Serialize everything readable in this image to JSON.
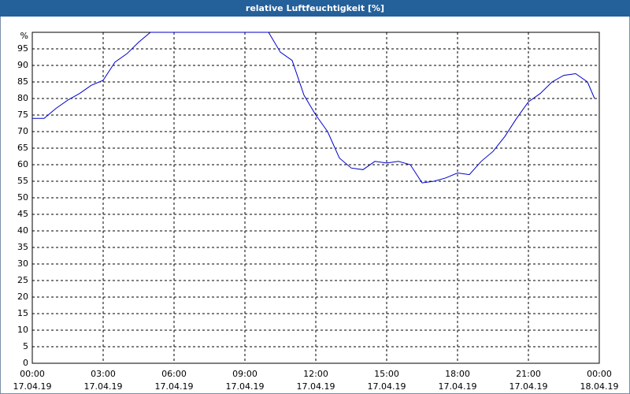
{
  "chart_data": {
    "type": "line",
    "title": "relative Luftfeuchtigkeit [%]",
    "y_unit_label": "%",
    "x": [
      0,
      0.5,
      1,
      1.5,
      2,
      2.5,
      3,
      3.5,
      4,
      4.5,
      5,
      5.5,
      6,
      6.5,
      7,
      7.5,
      8,
      8.5,
      9,
      9.5,
      10,
      10.5,
      11,
      11.5,
      12,
      12.5,
      13,
      13.5,
      14,
      14.5,
      15,
      15.5,
      16,
      16.5,
      17,
      17.5,
      18,
      18.5,
      19,
      19.5,
      20,
      20.5,
      21,
      21.5,
      22,
      22.5,
      23,
      23.5,
      23.8
    ],
    "series": [
      {
        "name": "relative Luftfeuchtigkeit",
        "color": "#0000cc",
        "values": [
          74,
          74,
          77,
          79.5,
          81.5,
          84,
          85.5,
          91,
          93.5,
          97,
          100,
          100,
          100,
          100,
          100,
          100,
          100,
          100,
          100,
          100,
          100,
          94,
          91.5,
          81,
          75,
          70,
          62,
          59,
          58.5,
          61,
          60.5,
          61,
          60,
          54.5,
          55,
          56,
          57.5,
          57,
          61,
          64,
          68.5,
          74,
          79,
          81.5,
          85,
          87,
          87.5,
          85,
          80
        ]
      }
    ],
    "xlim": [
      0,
      24
    ],
    "ylim": [
      0,
      100
    ],
    "xticks": [
      {
        "value": 0,
        "label": "00:00"
      },
      {
        "value": 3,
        "label": "03:00"
      },
      {
        "value": 6,
        "label": "06:00"
      },
      {
        "value": 9,
        "label": "09:00"
      },
      {
        "value": 12,
        "label": "12:00"
      },
      {
        "value": 15,
        "label": "15:00"
      },
      {
        "value": 18,
        "label": "18:00"
      },
      {
        "value": 21,
        "label": "21:00"
      },
      {
        "value": 24,
        "label": "00:00"
      }
    ],
    "xtick_dates": [
      "17.04.19",
      "17.04.19",
      "17.04.19",
      "17.04.19",
      "17.04.19",
      "17.04.19",
      "17.04.19",
      "17.04.19",
      "18.04.19"
    ],
    "yticks": [
      0,
      5,
      10,
      15,
      20,
      25,
      30,
      35,
      40,
      45,
      50,
      55,
      60,
      65,
      70,
      75,
      80,
      85,
      90,
      95
    ],
    "grid": true
  }
}
